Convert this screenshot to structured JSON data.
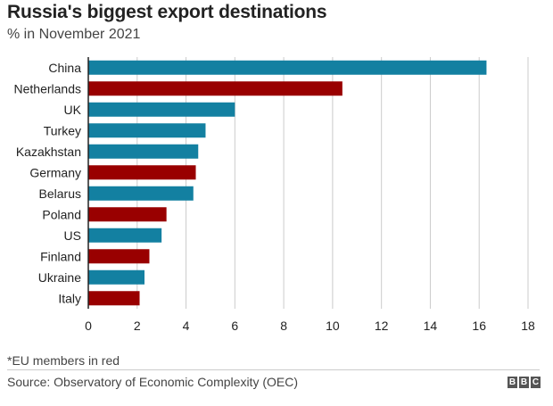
{
  "title": "Russia's biggest export destinations",
  "subtitle": "% in November 2021",
  "footnote": "*EU members in red",
  "source": "Source: Observatory of Economic Complexity (OEC)",
  "logo": [
    "B",
    "B",
    "C"
  ],
  "colors": {
    "non_eu": "#1380A1",
    "eu": "#990000",
    "grid": "#cbcbcb",
    "axis": "#222222"
  },
  "chart_data": {
    "type": "bar",
    "orientation": "horizontal",
    "title": "Russia's biggest export destinations",
    "subtitle": "% in November 2021",
    "categories": [
      "China",
      "Netherlands",
      "UK",
      "Turkey",
      "Kazakhstan",
      "Germany",
      "Belarus",
      "Poland",
      "US",
      "Finland",
      "Ukraine",
      "Italy"
    ],
    "values": [
      16.3,
      10.4,
      6.0,
      4.8,
      4.5,
      4.4,
      4.3,
      3.2,
      3.0,
      2.5,
      2.3,
      2.1
    ],
    "eu_member": [
      false,
      true,
      false,
      false,
      false,
      true,
      false,
      true,
      false,
      true,
      false,
      true
    ],
    "xlim": [
      0,
      18
    ],
    "xticks": [
      "0",
      "2",
      "4",
      "6",
      "8",
      "10",
      "12",
      "14",
      "16",
      "18"
    ],
    "xlabel": "",
    "ylabel": "",
    "grid": "vertical",
    "legend": "none"
  }
}
